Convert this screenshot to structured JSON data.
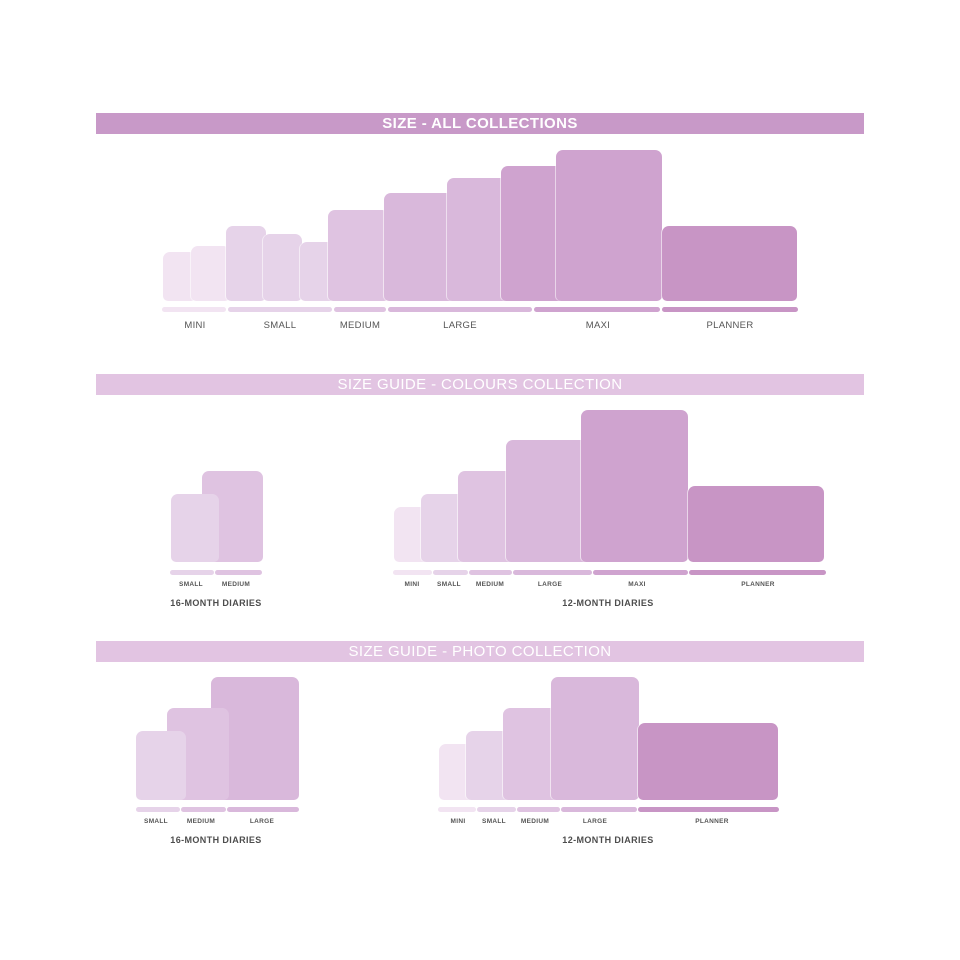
{
  "colors": {
    "mini": "#f2e4f2",
    "small": "#e6d3e9",
    "medium": "#dfc3e1",
    "large": "#d9b8db",
    "maxi": "#cfa3cf",
    "planner": "#c895c5",
    "banner_strong": "#c899c8",
    "banner_light": "#e2c4e2"
  },
  "sections": [
    {
      "title": "SIZE - ALL COLLECTIONS",
      "groups": [
        {
          "caption": "",
          "labels": [
            "MINI",
            "SMALL",
            "MEDIUM",
            "LARGE",
            "MAXI",
            "PLANNER"
          ]
        }
      ]
    },
    {
      "title": "SIZE GUIDE - COLOURS COLLECTION",
      "groups": [
        {
          "caption": "16-MONTH DIARIES",
          "labels": [
            "SMALL",
            "MEDIUM"
          ]
        },
        {
          "caption": "12-MONTH DIARIES",
          "labels": [
            "MINI",
            "SMALL",
            "MEDIUM",
            "LARGE",
            "MAXI",
            "PLANNER"
          ]
        }
      ]
    },
    {
      "title": "SIZE GUIDE - PHOTO COLLECTION",
      "groups": [
        {
          "caption": "16-MONTH DIARIES",
          "labels": [
            "SMALL",
            "MEDIUM",
            "LARGE"
          ]
        },
        {
          "caption": "12-MONTH DIARIES",
          "labels": [
            "MINI",
            "SMALL",
            "MEDIUM",
            "LARGE",
            "PLANNER"
          ]
        }
      ]
    }
  ]
}
